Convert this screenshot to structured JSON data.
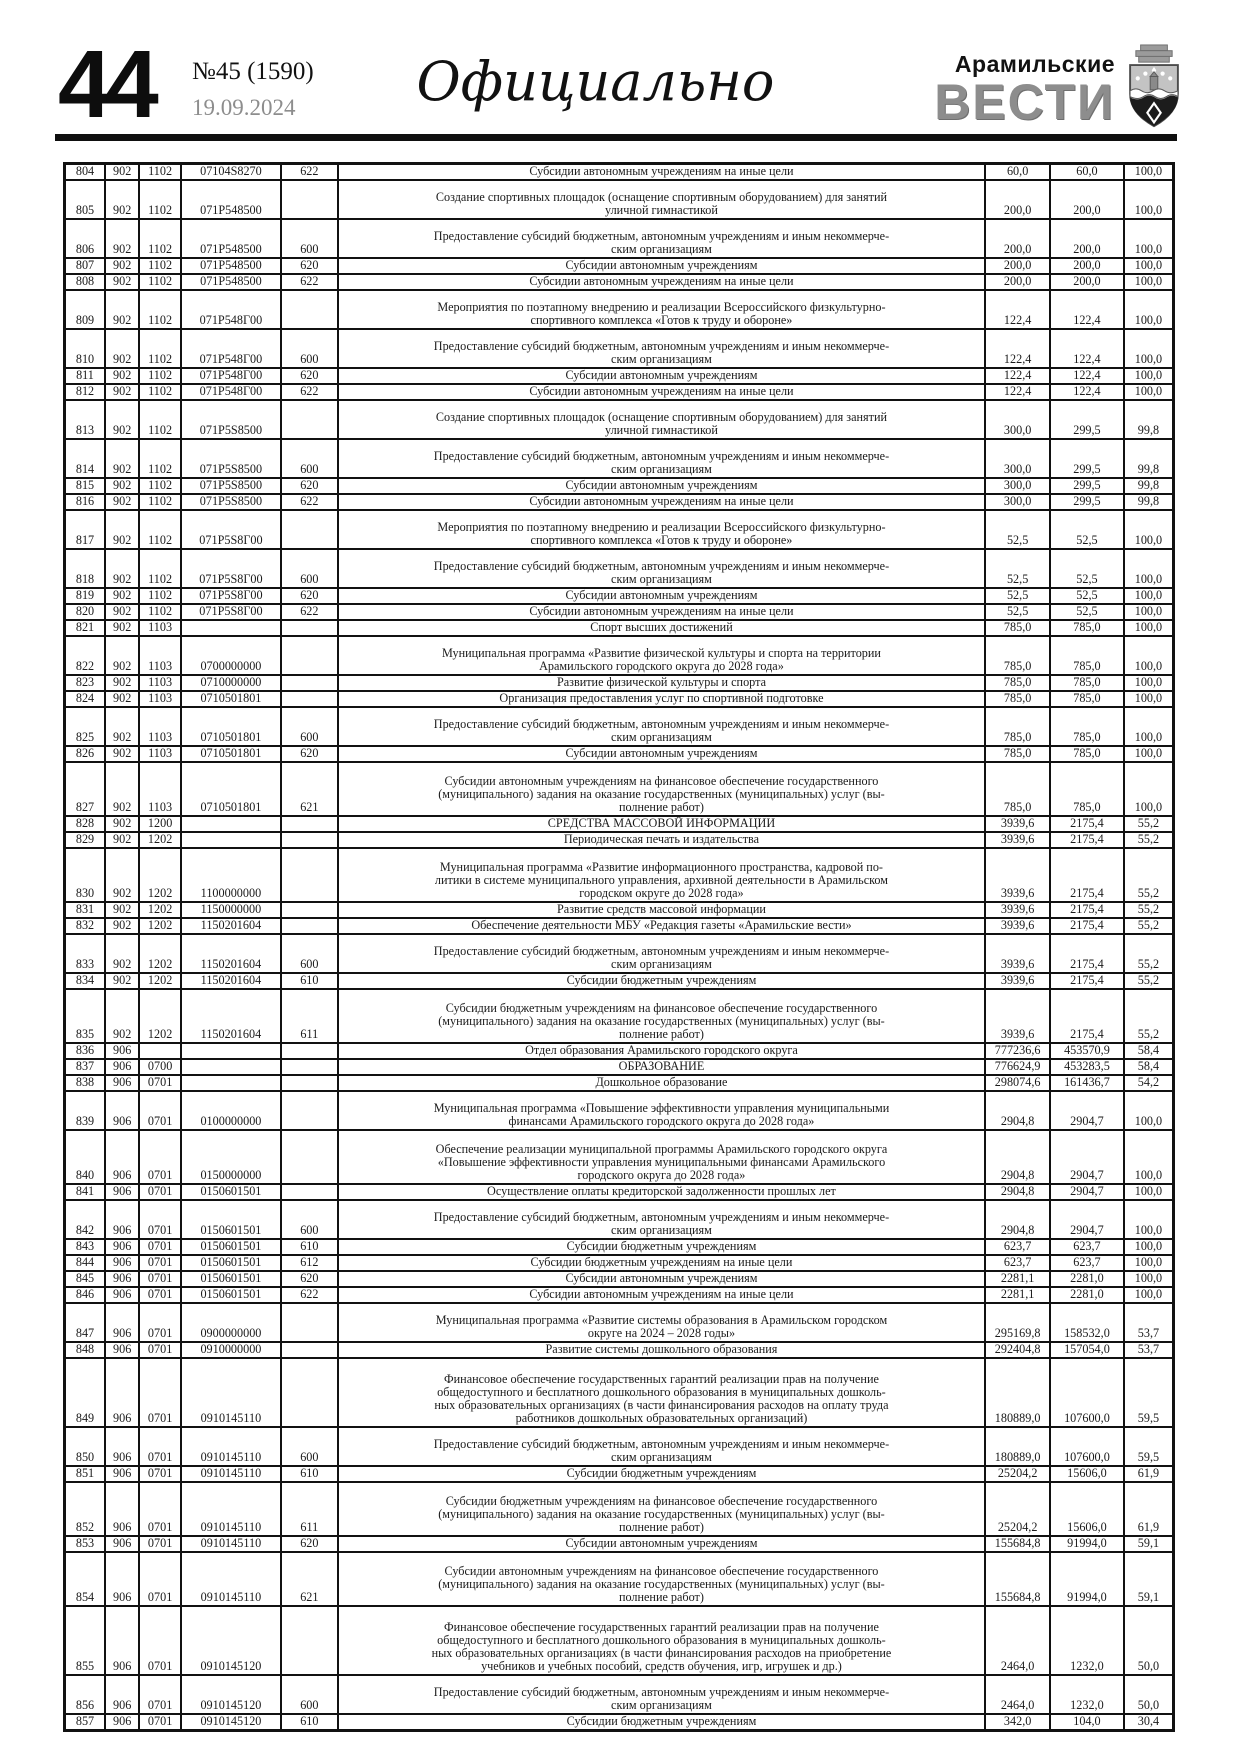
{
  "page": {
    "number": "44",
    "issue": "№45 (1590)",
    "date": "19.09.2024",
    "section_title": "Официально"
  },
  "masthead": {
    "brand_top": "Арамильские",
    "brand_bottom": "ВЕСТИ",
    "crest_icon": "aramil-city-coat-of-arms",
    "brand_gray": "#8d8d8d"
  },
  "table": {
    "columns": [
      "row-number",
      "grbs-code",
      "section-code",
      "target-article-code",
      "expense-type-code",
      "expense-name",
      "plan-value",
      "actual-value",
      "percent-value"
    ],
    "rows": [
      [
        "804",
        "902",
        "1102",
        "07104S8270",
        "622",
        "Субсидии автономным учреждениям на иные цели",
        "60,0",
        "60,0",
        "100,0"
      ],
      [
        "805",
        "902",
        "1102",
        "071P548500",
        "",
        "Создание спортивных площадок (оснащение спортивным оборудованием) для занятий\nуличной гимнастикой",
        "200,0",
        "200,0",
        "100,0"
      ],
      [
        "806",
        "902",
        "1102",
        "071P548500",
        "600",
        "Предоставление субсидий бюджетным, автономным учреждениям и иным некоммерче-\nским организациям",
        "200,0",
        "200,0",
        "100,0"
      ],
      [
        "807",
        "902",
        "1102",
        "071P548500",
        "620",
        "Субсидии автономным учреждениям",
        "200,0",
        "200,0",
        "100,0"
      ],
      [
        "808",
        "902",
        "1102",
        "071P548500",
        "622",
        "Субсидии автономным учреждениям на иные цели",
        "200,0",
        "200,0",
        "100,0"
      ],
      [
        "809",
        "902",
        "1102",
        "071P548Г00",
        "",
        "Мероприятия по поэтапному внедрению и реализации Всероссийского физкультурно-\nспортивного комплекса «Готов к труду и обороне»",
        "122,4",
        "122,4",
        "100,0"
      ],
      [
        "810",
        "902",
        "1102",
        "071P548Г00",
        "600",
        "Предоставление субсидий бюджетным, автономным учреждениям и иным некоммерче-\nским организациям",
        "122,4",
        "122,4",
        "100,0"
      ],
      [
        "811",
        "902",
        "1102",
        "071P548Г00",
        "620",
        "Субсидии автономным учреждениям",
        "122,4",
        "122,4",
        "100,0"
      ],
      [
        "812",
        "902",
        "1102",
        "071P548Г00",
        "622",
        "Субсидии автономным учреждениям на иные цели",
        "122,4",
        "122,4",
        "100,0"
      ],
      [
        "813",
        "902",
        "1102",
        "071P5S8500",
        "",
        "Создание спортивных площадок (оснащение спортивным оборудованием) для занятий\nуличной гимнастикой",
        "300,0",
        "299,5",
        "99,8"
      ],
      [
        "814",
        "902",
        "1102",
        "071P5S8500",
        "600",
        "Предоставление субсидий бюджетным, автономным учреждениям и иным некоммерче-\nским организациям",
        "300,0",
        "299,5",
        "99,8"
      ],
      [
        "815",
        "902",
        "1102",
        "071P5S8500",
        "620",
        "Субсидии автономным учреждениям",
        "300,0",
        "299,5",
        "99,8"
      ],
      [
        "816",
        "902",
        "1102",
        "071P5S8500",
        "622",
        "Субсидии автономным учреждениям на иные цели",
        "300,0",
        "299,5",
        "99,8"
      ],
      [
        "817",
        "902",
        "1102",
        "071P5S8Г00",
        "",
        "Мероприятия по поэтапному внедрению и реализации Всероссийского физкультурно-\nспортивного комплекса «Готов к труду и обороне»",
        "52,5",
        "52,5",
        "100,0"
      ],
      [
        "818",
        "902",
        "1102",
        "071P5S8Г00",
        "600",
        "Предоставление субсидий бюджетным, автономным учреждениям и иным некоммерче-\nским организациям",
        "52,5",
        "52,5",
        "100,0"
      ],
      [
        "819",
        "902",
        "1102",
        "071P5S8Г00",
        "620",
        "Субсидии автономным учреждениям",
        "52,5",
        "52,5",
        "100,0"
      ],
      [
        "820",
        "902",
        "1102",
        "071P5S8Г00",
        "622",
        "Субсидии автономным учреждениям на иные цели",
        "52,5",
        "52,5",
        "100,0"
      ],
      [
        "821",
        "902",
        "1103",
        "",
        "",
        "Спорт высших достижений",
        "785,0",
        "785,0",
        "100,0"
      ],
      [
        "822",
        "902",
        "1103",
        "0700000000",
        "",
        "Муниципальная программа «Развитие физической культуры и спорта на территории\nАрамильского городского округа до 2028 года»",
        "785,0",
        "785,0",
        "100,0"
      ],
      [
        "823",
        "902",
        "1103",
        "0710000000",
        "",
        "Развитие физической культуры и спорта",
        "785,0",
        "785,0",
        "100,0"
      ],
      [
        "824",
        "902",
        "1103",
        "0710501801",
        "",
        "Организация предоставления услуг по спортивной подготовке",
        "785,0",
        "785,0",
        "100,0"
      ],
      [
        "825",
        "902",
        "1103",
        "0710501801",
        "600",
        "Предоставление субсидий бюджетным, автономным учреждениям и иным некоммерче-\nским организациям",
        "785,0",
        "785,0",
        "100,0"
      ],
      [
        "826",
        "902",
        "1103",
        "0710501801",
        "620",
        "Субсидии автономным учреждениям",
        "785,0",
        "785,0",
        "100,0"
      ],
      [
        "827",
        "902",
        "1103",
        "0710501801",
        "621",
        "Субсидии автономным учреждениям на финансовое обеспечение государственного\n(муниципального) задания на оказание государственных (муниципальных) услуг (вы-\nполнение работ)",
        "785,0",
        "785,0",
        "100,0"
      ],
      [
        "828",
        "902",
        "1200",
        "",
        "",
        "СРЕДСТВА МАССОВОЙ ИНФОРМАЦИИ",
        "3939,6",
        "2175,4",
        "55,2"
      ],
      [
        "829",
        "902",
        "1202",
        "",
        "",
        "Периодическая печать и издательства",
        "3939,6",
        "2175,4",
        "55,2"
      ],
      [
        "830",
        "902",
        "1202",
        "1100000000",
        "",
        "Муниципальная программа «Развитие информационного пространства, кадровой по-\nлитики в системе муниципального управления, архивной деятельности в Арамильском\nгородском округе до 2028 года»",
        "3939,6",
        "2175,4",
        "55,2"
      ],
      [
        "831",
        "902",
        "1202",
        "1150000000",
        "",
        "Развитие средств массовой информации",
        "3939,6",
        "2175,4",
        "55,2"
      ],
      [
        "832",
        "902",
        "1202",
        "1150201604",
        "",
        "Обеспечение деятельности МБУ «Редакция газеты «Арамильские вести»",
        "3939,6",
        "2175,4",
        "55,2"
      ],
      [
        "833",
        "902",
        "1202",
        "1150201604",
        "600",
        "Предоставление субсидий бюджетным, автономным учреждениям и иным некоммерче-\nским организациям",
        "3939,6",
        "2175,4",
        "55,2"
      ],
      [
        "834",
        "902",
        "1202",
        "1150201604",
        "610",
        "Субсидии бюджетным учреждениям",
        "3939,6",
        "2175,4",
        "55,2"
      ],
      [
        "835",
        "902",
        "1202",
        "1150201604",
        "611",
        "Субсидии бюджетным учреждениям на финансовое обеспечение государственного\n(муниципального) задания на оказание государственных (муниципальных) услуг (вы-\nполнение работ)",
        "3939,6",
        "2175,4",
        "55,2"
      ],
      [
        "836",
        "906",
        "",
        "",
        "",
        "Отдел образования Арамильского городского округа",
        "777236,6",
        "453570,9",
        "58,4"
      ],
      [
        "837",
        "906",
        "0700",
        "",
        "",
        "ОБРАЗОВАНИЕ",
        "776624,9",
        "453283,5",
        "58,4"
      ],
      [
        "838",
        "906",
        "0701",
        "",
        "",
        "Дошкольное образование",
        "298074,6",
        "161436,7",
        "54,2"
      ],
      [
        "839",
        "906",
        "0701",
        "0100000000",
        "",
        "Муниципальная программа «Повышение эффективности управления муниципальными\nфинансами Арамильского городского округа до 2028 года»",
        "2904,8",
        "2904,7",
        "100,0"
      ],
      [
        "840",
        "906",
        "0701",
        "0150000000",
        "",
        "Обеспечение реализации муниципальной программы Арамильского городского округа\n«Повышение эффективности управления муниципальными финансами Арамильского\nгородского округа до 2028 года»",
        "2904,8",
        "2904,7",
        "100,0"
      ],
      [
        "841",
        "906",
        "0701",
        "0150601501",
        "",
        "Осуществление оплаты кредиторской задолженности прошлых лет",
        "2904,8",
        "2904,7",
        "100,0"
      ],
      [
        "842",
        "906",
        "0701",
        "0150601501",
        "600",
        "Предоставление субсидий бюджетным, автономным учреждениям и иным некоммерче-\nским организациям",
        "2904,8",
        "2904,7",
        "100,0"
      ],
      [
        "843",
        "906",
        "0701",
        "0150601501",
        "610",
        "Субсидии бюджетным учреждениям",
        "623,7",
        "623,7",
        "100,0"
      ],
      [
        "844",
        "906",
        "0701",
        "0150601501",
        "612",
        "Субсидии бюджетным учреждениям на иные цели",
        "623,7",
        "623,7",
        "100,0"
      ],
      [
        "845",
        "906",
        "0701",
        "0150601501",
        "620",
        "Субсидии автономным учреждениям",
        "2281,1",
        "2281,0",
        "100,0"
      ],
      [
        "846",
        "906",
        "0701",
        "0150601501",
        "622",
        "Субсидии автономным учреждениям на иные цели",
        "2281,1",
        "2281,0",
        "100,0"
      ],
      [
        "847",
        "906",
        "0701",
        "0900000000",
        "",
        "Муниципальная программа «Развитие системы образования в Арамильском городском\nокруге на 2024 – 2028 годы»",
        "295169,8",
        "158532,0",
        "53,7"
      ],
      [
        "848",
        "906",
        "0701",
        "0910000000",
        "",
        "Развитие системы дошкольного образования",
        "292404,8",
        "157054,0",
        "53,7"
      ],
      [
        "849",
        "906",
        "0701",
        "0910145110",
        "",
        "Финансовое обеспечение государственных гарантий реализации прав на получение\nобщедоступного и бесплатного дошкольного образования в муниципальных дошколь-\nных образовательных организациях (в части финансирования расходов на оплату труда\nработников дошкольных образовательных организаций)",
        "180889,0",
        "107600,0",
        "59,5"
      ],
      [
        "850",
        "906",
        "0701",
        "0910145110",
        "600",
        "Предоставление субсидий бюджетным, автономным учреждениям и иным некоммерче-\nским организациям",
        "180889,0",
        "107600,0",
        "59,5"
      ],
      [
        "851",
        "906",
        "0701",
        "0910145110",
        "610",
        "Субсидии бюджетным учреждениям",
        "25204,2",
        "15606,0",
        "61,9"
      ],
      [
        "852",
        "906",
        "0701",
        "0910145110",
        "611",
        "Субсидии бюджетным учреждениям на финансовое обеспечение государственного\n(муниципального) задания на оказание государственных (муниципальных) услуг (вы-\nполнение работ)",
        "25204,2",
        "15606,0",
        "61,9"
      ],
      [
        "853",
        "906",
        "0701",
        "0910145110",
        "620",
        "Субсидии автономным учреждениям",
        "155684,8",
        "91994,0",
        "59,1"
      ],
      [
        "854",
        "906",
        "0701",
        "0910145110",
        "621",
        "Субсидии автономным учреждениям на финансовое обеспечение государственного\n(муниципального) задания на оказание государственных (муниципальных) услуг (вы-\nполнение работ)",
        "155684,8",
        "91994,0",
        "59,1"
      ],
      [
        "855",
        "906",
        "0701",
        "0910145120",
        "",
        "Финансовое обеспечение государственных гарантий реализации прав на получение\nобщедоступного и бесплатного дошкольного образования в муниципальных дошколь-\nных образовательных организациях (в части финансирования расходов на приобретение\nучебников и учебных пособий, средств обучения, игр, игрушек и др.)",
        "2464,0",
        "1232,0",
        "50,0"
      ],
      [
        "856",
        "906",
        "0701",
        "0910145120",
        "600",
        "Предоставление субсидий бюджетным, автономным учреждениям и иным некоммерче-\nским организациям",
        "2464,0",
        "1232,0",
        "50,0"
      ],
      [
        "857",
        "906",
        "0701",
        "0910145120",
        "610",
        "Субсидии бюджетным учреждениям",
        "342,0",
        "104,0",
        "30,4"
      ]
    ]
  }
}
